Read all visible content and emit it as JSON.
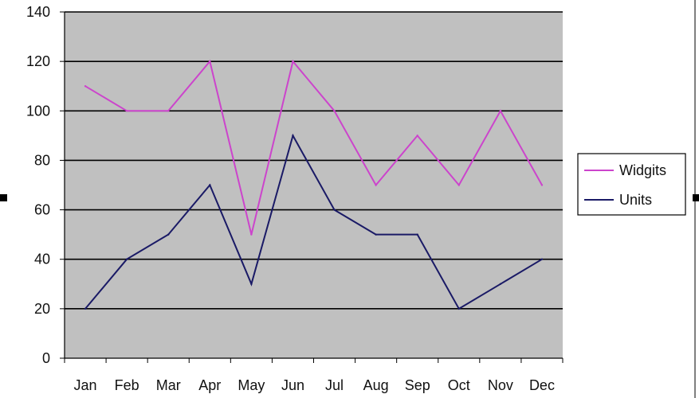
{
  "chart_data": {
    "type": "line",
    "title": "",
    "xlabel": "",
    "ylabel": "",
    "categories": [
      "Jan",
      "Feb",
      "Mar",
      "Apr",
      "May",
      "Jun",
      "Jul",
      "Aug",
      "Sep",
      "Oct",
      "Nov",
      "Dec"
    ],
    "series": [
      {
        "name": "Widgits",
        "color": "#cc44cc",
        "values": [
          110,
          100,
          100,
          120,
          50,
          120,
          100,
          70,
          90,
          70,
          100,
          70
        ]
      },
      {
        "name": "Units",
        "color": "#1a1a66",
        "values": [
          20,
          40,
          50,
          70,
          30,
          90,
          60,
          50,
          50,
          20,
          30,
          40
        ]
      }
    ],
    "ylim": [
      0,
      140
    ],
    "yticks": [
      "0",
      "20",
      "40",
      "60",
      "80",
      "100",
      "120",
      "140"
    ],
    "grid": true,
    "plot_background": "#c0c0c0",
    "legend_position": "right"
  }
}
